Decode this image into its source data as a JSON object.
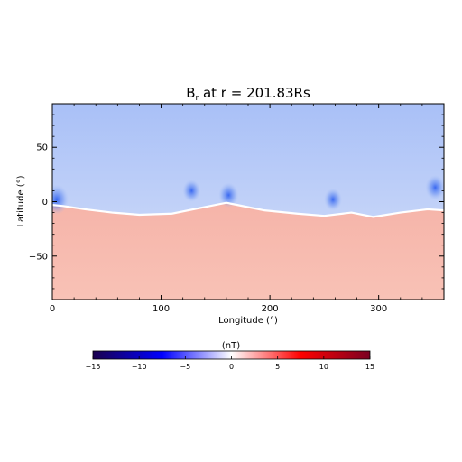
{
  "chart_data": {
    "type": "heatmap",
    "title": {
      "prefix": "B",
      "subscript": "r",
      "suffix": " at r = 201.83Rs"
    },
    "xlabel": "Longitude (°)",
    "ylabel": "Latitude (°)",
    "xlim": [
      0,
      360
    ],
    "ylim": [
      -90,
      90
    ],
    "x_ticks": [
      0,
      100,
      200,
      300
    ],
    "y_ticks": [
      -50,
      0,
      50
    ],
    "x_tick_labels": [
      "0",
      "100",
      "200",
      "300"
    ],
    "y_tick_labels": [
      "−50",
      "0",
      "50"
    ],
    "colorbar": {
      "label": "(nT)",
      "range": [
        -15,
        15
      ],
      "ticks": [
        -15,
        -10,
        -5,
        0,
        5,
        10,
        15
      ],
      "tick_labels": [
        "−15",
        "−10",
        "−5",
        "0",
        "5",
        "10",
        "15"
      ],
      "colormap": [
        "#1a004d",
        "#0000ff",
        "#ffffff",
        "#ff0000",
        "#7a0022"
      ]
    },
    "field_levels": {
      "north_hemisphere_nT": -3,
      "south_hemisphere_nT": 3
    },
    "neutral_line": {
      "longitude": [
        0,
        10,
        30,
        55,
        80,
        110,
        135,
        160,
        170,
        195,
        225,
        250,
        275,
        295,
        320,
        345,
        360
      ],
      "latitude": [
        -3,
        -4,
        -7,
        -10,
        -12,
        -11,
        -6,
        -1,
        -3,
        -8,
        -11,
        -13,
        -10,
        -14,
        -10,
        -7,
        -8
      ]
    },
    "negative_concentrations": [
      {
        "longitude": 4,
        "latitude": 2,
        "value": -9
      },
      {
        "longitude": 128,
        "latitude": 10,
        "value": -6
      },
      {
        "longitude": 162,
        "latitude": 6,
        "value": -7
      },
      {
        "longitude": 258,
        "latitude": 2,
        "value": -6
      },
      {
        "longitude": 352,
        "latitude": 13,
        "value": -7
      }
    ]
  }
}
